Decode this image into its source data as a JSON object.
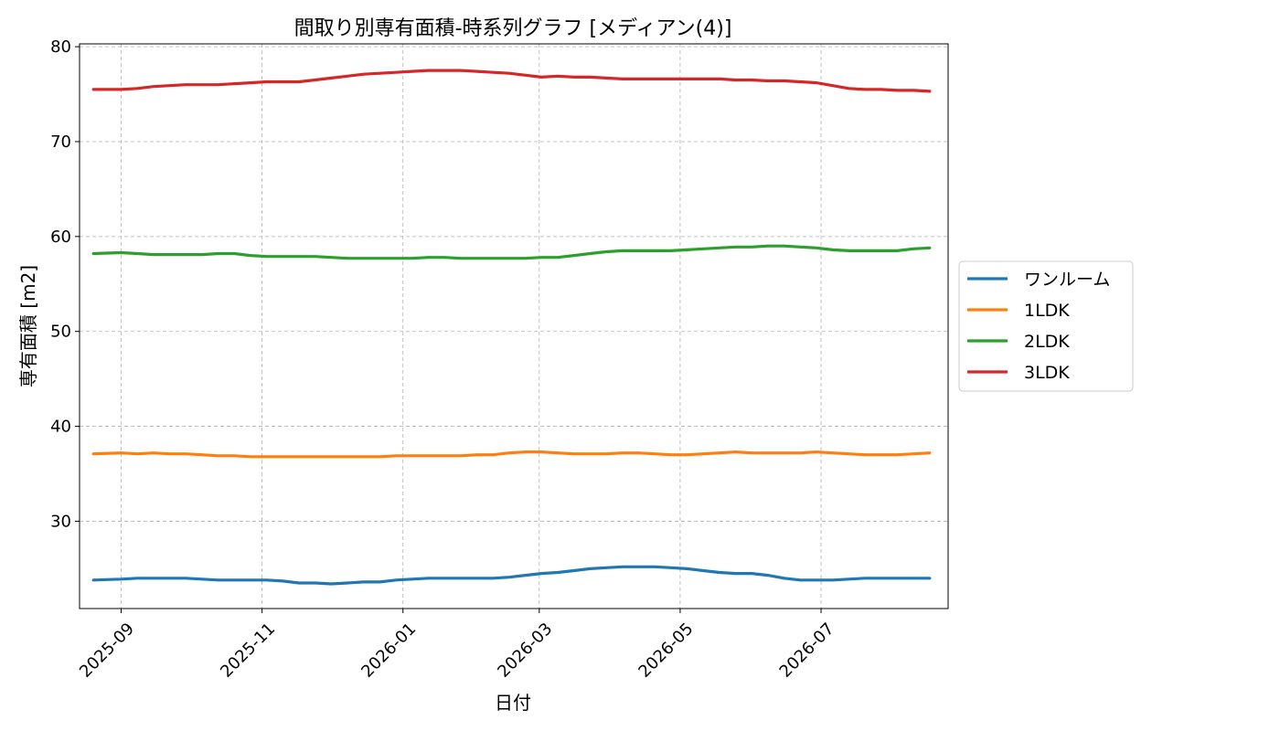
{
  "chart_data": {
    "type": "line",
    "title": "間取り別専有面積-時系列グラフ [メディアン(4)]",
    "xlabel": "日付",
    "ylabel": "専有面積 [m2]",
    "ylim": [
      20.8,
      80.3
    ],
    "yticks": [
      30,
      40,
      50,
      60,
      70,
      80
    ],
    "xlim": [
      "2025-08-14",
      "2026-08-25"
    ],
    "xticks": [
      "2025-09",
      "2025-11",
      "2026-01",
      "2026-03",
      "2026-05",
      "2026-07"
    ],
    "grid": true,
    "legend_position": "center-right-outside",
    "x": [
      "2025-08-20",
      "2025-09-01",
      "2025-09-08",
      "2025-09-15",
      "2025-09-22",
      "2025-09-29",
      "2025-10-06",
      "2025-10-13",
      "2025-10-20",
      "2025-10-27",
      "2025-11-03",
      "2025-11-10",
      "2025-11-17",
      "2025-11-24",
      "2025-12-01",
      "2025-12-08",
      "2025-12-15",
      "2025-12-22",
      "2025-12-29",
      "2026-01-05",
      "2026-01-12",
      "2026-01-19",
      "2026-01-26",
      "2026-02-02",
      "2026-02-09",
      "2026-02-16",
      "2026-02-23",
      "2026-03-02",
      "2026-03-09",
      "2026-03-16",
      "2026-03-23",
      "2026-03-30",
      "2026-04-06",
      "2026-04-13",
      "2026-04-20",
      "2026-04-27",
      "2026-05-04",
      "2026-05-11",
      "2026-05-18",
      "2026-05-25",
      "2026-06-01",
      "2026-06-08",
      "2026-06-15",
      "2026-06-22",
      "2026-06-29",
      "2026-07-06",
      "2026-07-13",
      "2026-07-20",
      "2026-07-27",
      "2026-08-03",
      "2026-08-10",
      "2026-08-17"
    ],
    "series": [
      {
        "name": "ワンルーム",
        "color": "#1f77b4",
        "values": [
          23.8,
          23.9,
          24.0,
          24.0,
          24.0,
          24.0,
          23.9,
          23.8,
          23.8,
          23.8,
          23.8,
          23.7,
          23.5,
          23.5,
          23.4,
          23.5,
          23.6,
          23.6,
          23.8,
          23.9,
          24.0,
          24.0,
          24.0,
          24.0,
          24.0,
          24.1,
          24.3,
          24.5,
          24.6,
          24.8,
          25.0,
          25.1,
          25.2,
          25.2,
          25.2,
          25.1,
          25.0,
          24.8,
          24.6,
          24.5,
          24.5,
          24.3,
          24.0,
          23.8,
          23.8,
          23.8,
          23.9,
          24.0,
          24.0,
          24.0,
          24.0,
          24.0
        ]
      },
      {
        "name": "1LDK",
        "color": "#ff7f0e",
        "values": [
          37.1,
          37.2,
          37.1,
          37.2,
          37.1,
          37.1,
          37.0,
          36.9,
          36.9,
          36.8,
          36.8,
          36.8,
          36.8,
          36.8,
          36.8,
          36.8,
          36.8,
          36.8,
          36.9,
          36.9,
          36.9,
          36.9,
          36.9,
          37.0,
          37.0,
          37.2,
          37.3,
          37.3,
          37.2,
          37.1,
          37.1,
          37.1,
          37.2,
          37.2,
          37.1,
          37.0,
          37.0,
          37.1,
          37.2,
          37.3,
          37.2,
          37.2,
          37.2,
          37.2,
          37.3,
          37.2,
          37.1,
          37.0,
          37.0,
          37.0,
          37.1,
          37.2
        ]
      },
      {
        "name": "2LDK",
        "color": "#2ca02c",
        "values": [
          58.2,
          58.3,
          58.2,
          58.1,
          58.1,
          58.1,
          58.1,
          58.2,
          58.2,
          58.0,
          57.9,
          57.9,
          57.9,
          57.9,
          57.8,
          57.7,
          57.7,
          57.7,
          57.7,
          57.7,
          57.8,
          57.8,
          57.7,
          57.7,
          57.7,
          57.7,
          57.7,
          57.8,
          57.8,
          58.0,
          58.2,
          58.4,
          58.5,
          58.5,
          58.5,
          58.5,
          58.6,
          58.7,
          58.8,
          58.9,
          58.9,
          59.0,
          59.0,
          58.9,
          58.8,
          58.6,
          58.5,
          58.5,
          58.5,
          58.5,
          58.7,
          58.8
        ]
      },
      {
        "name": "3LDK",
        "color": "#d62728",
        "values": [
          75.5,
          75.5,
          75.6,
          75.8,
          75.9,
          76.0,
          76.0,
          76.0,
          76.1,
          76.2,
          76.3,
          76.3,
          76.3,
          76.5,
          76.7,
          76.9,
          77.1,
          77.2,
          77.3,
          77.4,
          77.5,
          77.5,
          77.5,
          77.4,
          77.3,
          77.2,
          77.0,
          76.8,
          76.9,
          76.8,
          76.8,
          76.7,
          76.6,
          76.6,
          76.6,
          76.6,
          76.6,
          76.6,
          76.6,
          76.5,
          76.5,
          76.4,
          76.4,
          76.3,
          76.2,
          75.9,
          75.6,
          75.5,
          75.5,
          75.4,
          75.4,
          75.3
        ]
      }
    ]
  }
}
